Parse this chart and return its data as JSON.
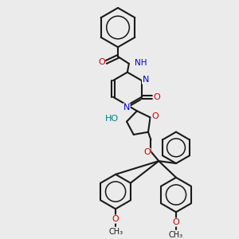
{
  "background_color": "#ebebeb",
  "bond_color": "#1a1a1a",
  "nitrogen_color": "#0000cc",
  "oxygen_color": "#cc0000",
  "teal_color": "#008080",
  "figsize": [
    3.0,
    3.0
  ],
  "dpi": 100,
  "xlim": [
    0,
    300
  ],
  "ylim": [
    0,
    300
  ]
}
